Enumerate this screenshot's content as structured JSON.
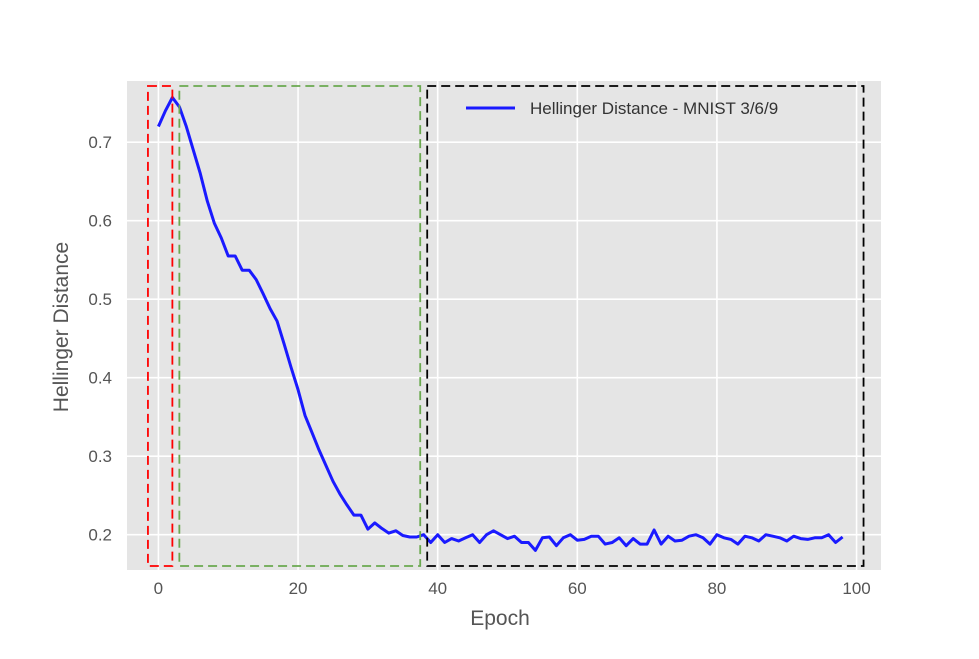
{
  "chart_data": {
    "type": "line",
    "xlabel": "Epoch",
    "ylabel": "Hellinger Distance",
    "xlim": [
      -4.5,
      103.5
    ],
    "ylim": [
      0.155,
      0.778
    ],
    "xticks": [
      0,
      20,
      40,
      60,
      80,
      100
    ],
    "yticks": [
      0.2,
      0.3,
      0.4,
      0.5,
      0.6,
      0.7
    ],
    "ytick_labels": [
      "0.2",
      "0.3",
      "0.4",
      "0.5",
      "0.6",
      "0.7"
    ],
    "grid": true,
    "legend_position": "top-right",
    "series": [
      {
        "name": "Hellinger Distance - MNIST 3/6/9",
        "color": "#1a1aff",
        "x": [
          0,
          1,
          2,
          3,
          4,
          5,
          6,
          7,
          8,
          9,
          10,
          11,
          12,
          13,
          14,
          15,
          16,
          17,
          18,
          19,
          20,
          21,
          22,
          23,
          24,
          25,
          26,
          27,
          28,
          29,
          30,
          31,
          32,
          33,
          34,
          35,
          36,
          37,
          38,
          39,
          40,
          41,
          42,
          43,
          44,
          45,
          46,
          47,
          48,
          49,
          50,
          51,
          52,
          53,
          54,
          55,
          56,
          57,
          58,
          59,
          60,
          61,
          62,
          63,
          64,
          65,
          66,
          67,
          68,
          69,
          70,
          71,
          72,
          73,
          74,
          75,
          76,
          77,
          78,
          79,
          80,
          81,
          82,
          83,
          84,
          85,
          86,
          87,
          88,
          89,
          90,
          91,
          92,
          93,
          94,
          95,
          96,
          97,
          98
        ],
        "y": [
          0.72,
          0.74,
          0.757,
          0.745,
          0.72,
          0.69,
          0.66,
          0.625,
          0.597,
          0.578,
          0.555,
          0.555,
          0.537,
          0.537,
          0.525,
          0.507,
          0.488,
          0.472,
          0.443,
          0.413,
          0.385,
          0.352,
          0.33,
          0.308,
          0.288,
          0.268,
          0.252,
          0.238,
          0.225,
          0.225,
          0.207,
          0.215,
          0.208,
          0.202,
          0.205,
          0.199,
          0.197,
          0.197,
          0.2,
          0.19,
          0.2,
          0.19,
          0.195,
          0.192,
          0.196,
          0.2,
          0.19,
          0.2,
          0.205,
          0.2,
          0.195,
          0.198,
          0.19,
          0.19,
          0.18,
          0.196,
          0.197,
          0.186,
          0.196,
          0.2,
          0.193,
          0.194,
          0.198,
          0.198,
          0.188,
          0.19,
          0.196,
          0.186,
          0.195,
          0.188,
          0.188,
          0.206,
          0.188,
          0.198,
          0.192,
          0.193,
          0.198,
          0.2,
          0.196,
          0.188,
          0.2,
          0.196,
          0.194,
          0.188,
          0.198,
          0.196,
          0.192,
          0.2,
          0.198,
          0.196,
          0.192,
          0.198,
          0.195,
          0.194,
          0.196,
          0.196,
          0.2,
          0.19,
          0.197
        ]
      }
    ],
    "annotations": [
      {
        "type": "dashed-box",
        "color": "#ff0000",
        "x_range": [
          -1.5,
          2
        ]
      },
      {
        "type": "dashed-box",
        "color": "#6aa84f",
        "x_range": [
          3,
          37.5
        ]
      },
      {
        "type": "dashed-box",
        "color": "#000000",
        "x_range": [
          38.5,
          101
        ]
      }
    ]
  }
}
